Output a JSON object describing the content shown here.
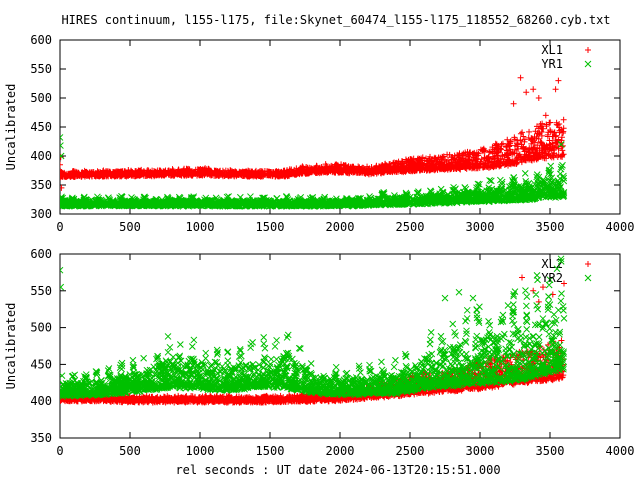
{
  "page": {
    "title": "HIRES continuum, l155-l175, file:Skynet_60474_l155-l175_118552_68260.cyb.txt",
    "xlabel": "rel seconds : UT date 2024-06-13T20:15:51.000"
  },
  "colors": {
    "red": "#ff0000",
    "green": "#00c000",
    "axis": "#000000"
  },
  "chart_data": [
    {
      "type": "scatter",
      "ylabel": "Uncalibrated",
      "xlim": [
        0,
        4000
      ],
      "ylim": [
        300,
        600
      ],
      "xticks": [
        0,
        500,
        1000,
        1500,
        2000,
        2500,
        3000,
        3500,
        4000
      ],
      "yticks": [
        300,
        350,
        400,
        450,
        500,
        550,
        600
      ],
      "legend_position": "top-right",
      "series": [
        {
          "name": "XL1",
          "marker": "plus",
          "color": "#ff0000",
          "profile_x": [
            0,
            300,
            700,
            1000,
            1300,
            1600,
            1800,
            2000,
            2200,
            2500,
            2800,
            3000,
            3200,
            3400,
            3600
          ],
          "profile_base": [
            365,
            366,
            367,
            368,
            366,
            366,
            372,
            373,
            370,
            375,
            378,
            380,
            385,
            395,
            400
          ],
          "profile_spread": [
            8,
            8,
            8,
            10,
            8,
            8,
            12,
            12,
            10,
            20,
            25,
            30,
            45,
            60,
            70
          ],
          "x": [
            0,
            5,
            10,
            3240,
            3290,
            3330,
            3380,
            3420,
            3470,
            3540,
            3560
          ],
          "y": [
            385,
            398,
            345,
            490,
            535,
            510,
            515,
            500,
            470,
            515,
            530
          ]
        },
        {
          "name": "YR1",
          "marker": "cross",
          "color": "#00c000",
          "profile_x": [
            0,
            500,
            1000,
            1500,
            2000,
            2500,
            3000,
            3300,
            3500,
            3600
          ],
          "profile_base": [
            315,
            315,
            315,
            315,
            315,
            318,
            322,
            325,
            330,
            330
          ],
          "profile_spread": [
            8,
            8,
            8,
            8,
            8,
            12,
            18,
            25,
            30,
            35
          ],
          "x": [
            0,
            3,
            8,
            3580
          ],
          "y": [
            432,
            418,
            400,
            420
          ]
        }
      ]
    },
    {
      "type": "scatter",
      "ylabel": "Uncalibrated",
      "xlim": [
        0,
        4000
      ],
      "ylim": [
        350,
        600
      ],
      "xticks": [
        0,
        500,
        1000,
        1500,
        2000,
        2500,
        3000,
        3500,
        4000
      ],
      "yticks": [
        350,
        400,
        450,
        500,
        550,
        600
      ],
      "legend_position": "top-right",
      "series": [
        {
          "name": "XL2",
          "marker": "plus",
          "color": "#ff0000",
          "profile_x": [
            0,
            500,
            1000,
            1500,
            2000,
            2500,
            3000,
            3300,
            3500,
            3600
          ],
          "profile_base": [
            402,
            400,
            400,
            400,
            402,
            410,
            418,
            425,
            430,
            432
          ],
          "profile_spread": [
            6,
            6,
            6,
            6,
            8,
            25,
            35,
            45,
            50,
            55
          ],
          "x": [
            3300,
            3380,
            3420,
            3450,
            3520,
            3600
          ],
          "y": [
            568,
            550,
            535,
            555,
            545,
            560
          ]
        },
        {
          "name": "YR2",
          "marker": "cross",
          "color": "#00c000",
          "profile_x": [
            0,
            300,
            600,
            800,
            1000,
            1200,
            1400,
            1600,
            1800,
            2000,
            2400,
            2600,
            2800,
            3000,
            3300,
            3500,
            3600
          ],
          "profile_base": [
            408,
            410,
            415,
            420,
            418,
            415,
            420,
            420,
            412,
            410,
            412,
            418,
            422,
            425,
            430,
            440,
            445
          ],
          "profile_spread": [
            15,
            18,
            25,
            40,
            35,
            30,
            35,
            45,
            25,
            20,
            25,
            40,
            55,
            60,
            70,
            80,
            85
          ],
          "x": [
            0,
            5,
            2750,
            2850,
            2950,
            3200,
            3400,
            3500,
            3550,
            3580
          ],
          "y": [
            578,
            555,
            540,
            548,
            540,
            530,
            545,
            565,
            580,
            590
          ]
        }
      ]
    }
  ]
}
